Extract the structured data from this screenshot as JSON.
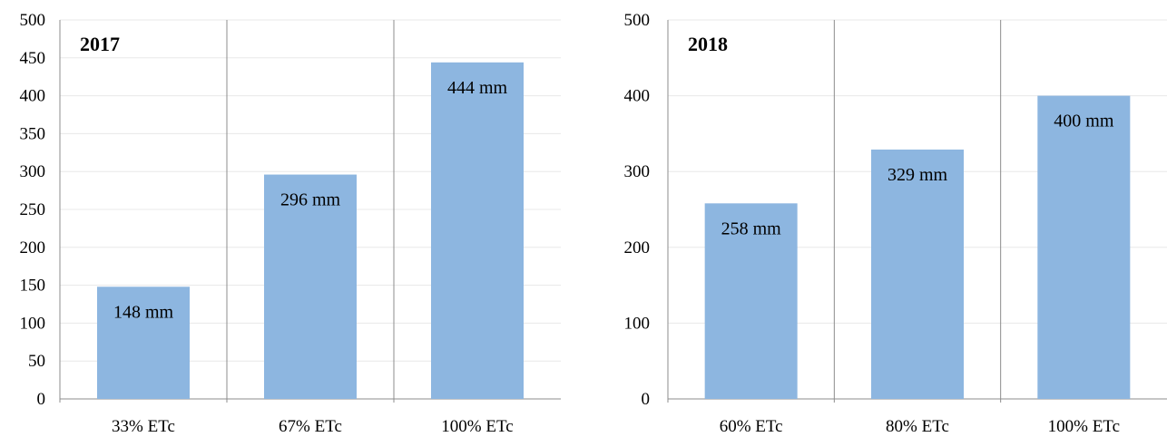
{
  "colors": {
    "bar": "#8DB6E0",
    "grid": "#E8E8E8",
    "separator": "#8C8C8C",
    "text": "#000000"
  },
  "chart_data": [
    {
      "type": "bar",
      "title": "2017",
      "categories": [
        "33% ETc",
        "67% ETc",
        "100% ETc"
      ],
      "values": [
        148,
        296,
        444
      ],
      "data_labels": [
        "148 mm",
        "296 mm",
        "444 mm"
      ],
      "ylim": [
        0,
        500
      ],
      "yticks": [
        0,
        50,
        100,
        150,
        200,
        250,
        300,
        350,
        400,
        450,
        500
      ],
      "xlabel": "",
      "ylabel": "",
      "grid": true
    },
    {
      "type": "bar",
      "title": "2018",
      "categories": [
        "60% ETc",
        "80% ETc",
        "100% ETc"
      ],
      "values": [
        258,
        329,
        400
      ],
      "data_labels": [
        "258 mm",
        "329 mm",
        "400 mm"
      ],
      "ylim": [
        0,
        500
      ],
      "yticks": [
        0,
        100,
        200,
        300,
        400,
        500
      ],
      "xlabel": "",
      "ylabel": "",
      "grid": true
    }
  ]
}
